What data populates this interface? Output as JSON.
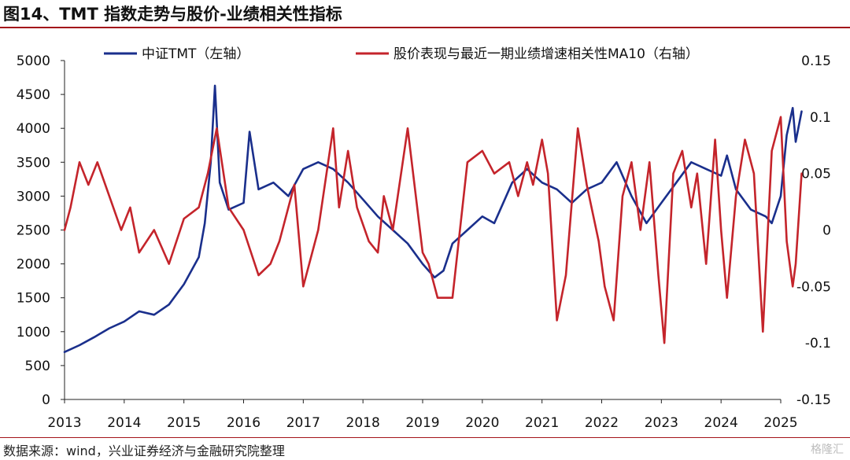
{
  "title": "图14、TMT 指数走势与股价-业绩相关性指标",
  "source": "数据来源：wind，兴业证券经济与金融研究院整理",
  "watermark": "格隆汇",
  "chart_data": {
    "type": "line",
    "x_ticks": [
      "2013",
      "2014",
      "2015",
      "2016",
      "2017",
      "2018",
      "2019",
      "2020",
      "2021",
      "2022",
      "2023",
      "2024",
      "2025"
    ],
    "y_left": {
      "ticks": [
        "0",
        "500",
        "1000",
        "1500",
        "2000",
        "2500",
        "3000",
        "3500",
        "4000",
        "4500",
        "5000"
      ],
      "ylim": [
        0,
        5000
      ]
    },
    "y_right": {
      "ticks": [
        "-0.15",
        "-0.1",
        "-0.05",
        "0",
        "0.05",
        "0.1",
        "0.15"
      ],
      "ylim": [
        -0.15,
        0.15
      ]
    },
    "colors": {
      "series1": "#1a2f8c",
      "series2": "#c4242b",
      "axis": "#222222"
    },
    "legend_position": "top",
    "series": [
      {
        "name": "中证TMT（左轴）",
        "axis": "left",
        "x": [
          2013.0,
          2013.25,
          2013.5,
          2013.75,
          2014.0,
          2014.25,
          2014.5,
          2014.75,
          2015.0,
          2015.25,
          2015.35,
          2015.45,
          2015.52,
          2015.6,
          2015.75,
          2016.0,
          2016.1,
          2016.25,
          2016.5,
          2016.75,
          2017.0,
          2017.25,
          2017.5,
          2017.75,
          2018.0,
          2018.25,
          2018.5,
          2018.75,
          2019.0,
          2019.2,
          2019.35,
          2019.5,
          2019.75,
          2020.0,
          2020.2,
          2020.5,
          2020.75,
          2021.0,
          2021.25,
          2021.5,
          2021.75,
          2022.0,
          2022.25,
          2022.5,
          2022.75,
          2023.0,
          2023.25,
          2023.5,
          2023.75,
          2024.0,
          2024.1,
          2024.25,
          2024.5,
          2024.75,
          2024.85,
          2025.0,
          2025.1,
          2025.2,
          2025.25,
          2025.35
        ],
        "values": [
          700,
          800,
          920,
          1050,
          1150,
          1300,
          1250,
          1400,
          1700,
          2100,
          2600,
          3500,
          4630,
          3200,
          2800,
          2900,
          3950,
          3100,
          3200,
          3000,
          3400,
          3500,
          3400,
          3200,
          2950,
          2700,
          2500,
          2300,
          2000,
          1800,
          1900,
          2300,
          2500,
          2700,
          2600,
          3200,
          3400,
          3200,
          3100,
          2900,
          3100,
          3200,
          3500,
          3000,
          2600,
          2900,
          3200,
          3500,
          3400,
          3300,
          3600,
          3100,
          2800,
          2700,
          2600,
          3000,
          3900,
          4300,
          3800,
          4250
        ]
      },
      {
        "name": "股价表现与最近一期业绩增速相关性MA10（右轴）",
        "axis": "right",
        "x": [
          2013.0,
          2013.1,
          2013.25,
          2013.4,
          2013.55,
          2013.75,
          2013.95,
          2014.1,
          2014.25,
          2014.5,
          2014.75,
          2015.0,
          2015.25,
          2015.4,
          2015.55,
          2015.75,
          2016.0,
          2016.25,
          2016.45,
          2016.6,
          2016.85,
          2017.0,
          2017.25,
          2017.5,
          2017.6,
          2017.75,
          2017.9,
          2018.1,
          2018.25,
          2018.35,
          2018.5,
          2018.75,
          2019.0,
          2019.1,
          2019.25,
          2019.5,
          2019.75,
          2020.0,
          2020.2,
          2020.45,
          2020.6,
          2020.75,
          2020.85,
          2021.0,
          2021.1,
          2021.25,
          2021.4,
          2021.6,
          2021.75,
          2021.95,
          2022.05,
          2022.2,
          2022.35,
          2022.5,
          2022.65,
          2022.8,
          2022.95,
          2023.05,
          2023.2,
          2023.35,
          2023.5,
          2023.6,
          2023.75,
          2023.9,
          2024.0,
          2024.1,
          2024.25,
          2024.4,
          2024.55,
          2024.7,
          2024.85,
          2025.0,
          2025.1,
          2025.2,
          2025.25,
          2025.35
        ],
        "values": [
          0.0,
          0.02,
          0.06,
          0.04,
          0.06,
          0.03,
          0.0,
          0.02,
          -0.02,
          0.0,
          -0.03,
          0.01,
          0.02,
          0.05,
          0.09,
          0.02,
          0.0,
          -0.04,
          -0.03,
          -0.01,
          0.04,
          -0.05,
          0.0,
          0.09,
          0.02,
          0.07,
          0.02,
          -0.01,
          -0.02,
          0.03,
          0.0,
          0.09,
          -0.02,
          -0.03,
          -0.06,
          -0.06,
          0.06,
          0.07,
          0.05,
          0.06,
          0.03,
          0.06,
          0.04,
          0.08,
          0.05,
          -0.08,
          -0.04,
          0.09,
          0.04,
          -0.01,
          -0.05,
          -0.08,
          0.03,
          0.06,
          0.0,
          0.06,
          -0.04,
          -0.1,
          0.05,
          0.07,
          0.02,
          0.05,
          -0.03,
          0.08,
          0.0,
          -0.06,
          0.03,
          0.08,
          0.05,
          -0.09,
          0.07,
          0.1,
          -0.01,
          -0.05,
          -0.03,
          0.05
        ]
      }
    ]
  }
}
